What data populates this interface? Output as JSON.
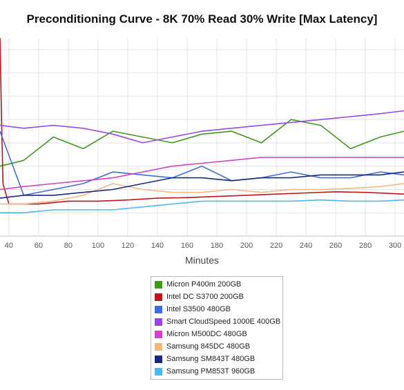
{
  "chart_data": {
    "type": "line",
    "title": "Preconditioning Curve - 8K 70% Read 30% Write [Max Latency]",
    "xlabel": "Minutes",
    "ylabel": "",
    "xlim": [
      34,
      306
    ],
    "ylim": [
      0,
      340
    ],
    "x_ticks": [
      40,
      60,
      80,
      100,
      120,
      140,
      160,
      180,
      200,
      220,
      240,
      260,
      280,
      300
    ],
    "x_tick_labels": [
      "40",
      "60",
      "80",
      "100",
      "120",
      "140",
      "160",
      "180",
      "200",
      "220",
      "240",
      "260",
      "280",
      "300"
    ],
    "y_grid_values": [
      40,
      80,
      120,
      160,
      200,
      240,
      280,
      320
    ],
    "grid": true,
    "legend": "bottom-center",
    "series": [
      {
        "name": "Micron P400m 200GB",
        "color": "#3c9a1a",
        "x": [
          34,
          50,
          70,
          90,
          110,
          130,
          150,
          170,
          190,
          210,
          230,
          250,
          270,
          290,
          306
        ],
        "values": [
          120,
          130,
          170,
          150,
          180,
          170,
          160,
          175,
          180,
          160,
          200,
          190,
          150,
          170,
          180
        ]
      },
      {
        "name": "Intel DC S3700 200GB",
        "color": "#c0141a",
        "x": [
          34,
          35,
          36,
          40,
          60,
          80,
          100,
          120,
          140,
          160,
          180,
          200,
          220,
          240,
          260,
          280,
          306
        ],
        "values": [
          340,
          200,
          90,
          55,
          55,
          60,
          60,
          62,
          65,
          66,
          68,
          70,
          72,
          74,
          76,
          75,
          72
        ]
      },
      {
        "name": "Intel S3500 480GB",
        "color": "#3d6be3",
        "x": [
          34,
          50,
          70,
          90,
          110,
          130,
          150,
          170,
          190,
          210,
          230,
          250,
          270,
          290,
          306
        ],
        "values": [
          180,
          70,
          80,
          90,
          110,
          105,
          100,
          120,
          95,
          100,
          110,
          100,
          100,
          110,
          105
        ]
      },
      {
        "name": "Smart CloudSpeed 1000E 400GB",
        "color": "#9a45e8",
        "x": [
          34,
          50,
          70,
          90,
          110,
          130,
          150,
          170,
          190,
          210,
          230,
          250,
          270,
          290,
          306
        ],
        "values": [
          190,
          185,
          190,
          185,
          175,
          160,
          170,
          180,
          185,
          190,
          195,
          200,
          205,
          210,
          215
        ]
      },
      {
        "name": "Micron M500DC 480GB",
        "color": "#d43ec8",
        "x": [
          34,
          50,
          70,
          90,
          110,
          130,
          150,
          170,
          190,
          210,
          230,
          250,
          270,
          290,
          306
        ],
        "values": [
          80,
          85,
          90,
          95,
          100,
          110,
          120,
          125,
          130,
          135,
          135,
          135,
          135,
          135,
          135
        ]
      },
      {
        "name": "Samsung 845DC 480GB",
        "color": "#f4b87c",
        "x": [
          34,
          50,
          70,
          90,
          110,
          130,
          150,
          170,
          190,
          210,
          230,
          250,
          270,
          290,
          306
        ],
        "values": [
          55,
          55,
          60,
          70,
          90,
          80,
          75,
          75,
          80,
          75,
          80,
          80,
          82,
          85,
          90
        ]
      },
      {
        "name": "Samsung SM843T 480GB",
        "color": "#162a7e",
        "x": [
          34,
          50,
          70,
          90,
          110,
          130,
          150,
          170,
          190,
          210,
          230,
          250,
          270,
          290,
          306
        ],
        "values": [
          65,
          70,
          70,
          75,
          80,
          90,
          100,
          100,
          95,
          100,
          100,
          105,
          105,
          105,
          110
        ]
      },
      {
        "name": "Samsung PM853T 960GB",
        "color": "#4ab8ee",
        "x": [
          34,
          50,
          70,
          90,
          110,
          130,
          150,
          170,
          190,
          210,
          230,
          250,
          270,
          290,
          306
        ],
        "values": [
          40,
          40,
          45,
          45,
          45,
          50,
          55,
          60,
          60,
          60,
          60,
          62,
          60,
          60,
          62
        ]
      }
    ]
  }
}
